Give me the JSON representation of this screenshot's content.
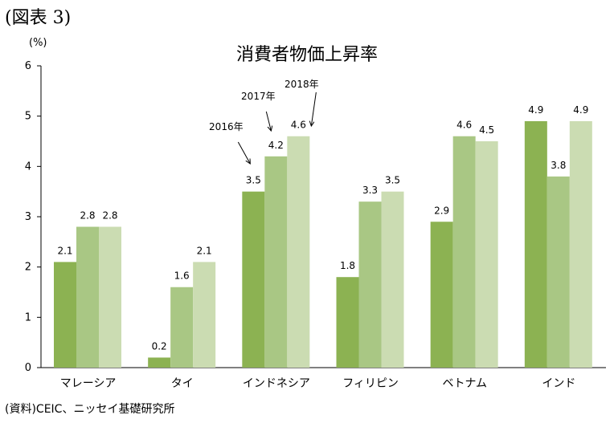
{
  "figure_label": "(図表 3)",
  "source": "(資料)CEIC、ニッセイ基礎研究所",
  "colors": {
    "s2016": "#8cb252",
    "s2017": "#a9c784",
    "s2018": "#cbdcb2"
  },
  "chart_data": {
    "type": "bar",
    "title": "消費者物価上昇率",
    "ylabel": "(%)",
    "xlabel": "",
    "ylim": [
      0,
      6
    ],
    "yticks": [
      "0",
      "1",
      "2",
      "3",
      "4",
      "5",
      "6"
    ],
    "grid": false,
    "legend": "none",
    "categories": [
      "マレーシア",
      "タイ",
      "インドネシア",
      "フィリピン",
      "ベトナム",
      "インド"
    ],
    "series": [
      {
        "name": "2016年",
        "values": [
          2.1,
          0.2,
          3.5,
          1.8,
          2.9,
          4.9
        ]
      },
      {
        "name": "2017年",
        "values": [
          2.8,
          1.6,
          4.2,
          3.3,
          4.6,
          3.8
        ]
      },
      {
        "name": "2018年",
        "values": [
          2.8,
          2.1,
          4.6,
          3.5,
          4.5,
          4.9
        ]
      }
    ],
    "data_labels": [
      [
        "2.1",
        "0.2",
        "3.5",
        "1.8",
        "2.9",
        "4.9"
      ],
      [
        "2.8",
        "1.6",
        "4.2",
        "3.3",
        "4.6",
        "3.8"
      ],
      [
        "2.8",
        "2.1",
        "4.6",
        "3.5",
        "4.5",
        "4.9"
      ]
    ],
    "annotations": [
      "2016年",
      "2017年",
      "2018年"
    ]
  }
}
